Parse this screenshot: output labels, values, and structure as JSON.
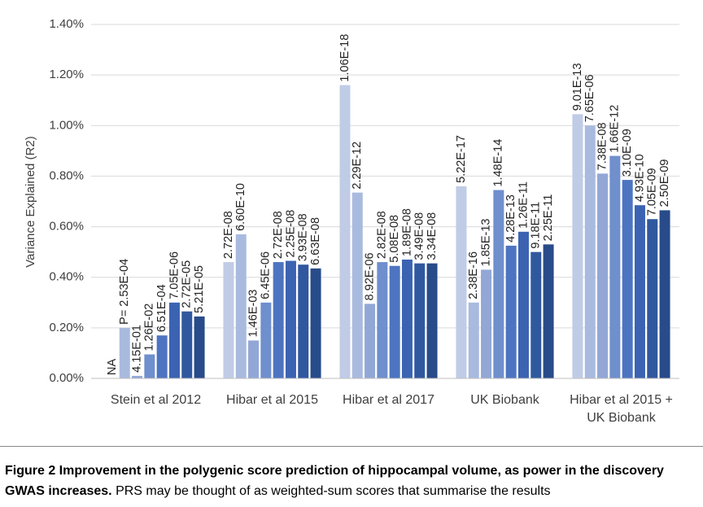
{
  "chart_data": {
    "type": "bar",
    "y_label": "Variance Explained (R2)",
    "categories": [
      "Stein et al 2012",
      "Hibar et al 2015",
      "Hibar et al 2017",
      "UK Biobank",
      "Hibar et al 2015 + UK Biobank"
    ],
    "ylim": [
      0,
      1.4
    ],
    "yticks": [
      {
        "value": 0,
        "label": "0.00%"
      },
      {
        "value": 0.2,
        "label": "0.20%"
      },
      {
        "value": 0.4,
        "label": "0.40%"
      },
      {
        "value": 0.6,
        "label": "0.60%"
      },
      {
        "value": 0.8,
        "label": "0.80%"
      },
      {
        "value": 1.0,
        "label": "1.00%"
      },
      {
        "value": 1.2,
        "label": "1.20%"
      },
      {
        "value": 1.4,
        "label": "1.40%"
      }
    ],
    "grid": true,
    "series": [
      {
        "color": "#c0cce6",
        "values": [
          null,
          0.46,
          1.16,
          0.76,
          1.045
        ],
        "labels": [
          "NA",
          "2.72E-08",
          "1.06E-18",
          "5.22E-17",
          "9.01E-13"
        ]
      },
      {
        "color": "#a9badf",
        "values": [
          0.2,
          0.57,
          0.735,
          0.3,
          1.0
        ],
        "labels": [
          "P= 2.53E-04",
          "6.60E-10",
          "2.29E-12",
          "2.38E-16",
          "7.65E-06"
        ]
      },
      {
        "color": "#92a7d6",
        "values": [
          0.01,
          0.15,
          0.295,
          0.43,
          0.81
        ],
        "labels": [
          "4.15E-01",
          "1.46E-03",
          "8.92E-06",
          "1.85E-13",
          "7.38E-08"
        ]
      },
      {
        "color": "#6f8fcd",
        "values": [
          0.095,
          0.3,
          0.46,
          0.745,
          0.88
        ],
        "labels": [
          "1.26E-02",
          "6.45E-06",
          "2.82E-08",
          "1.48E-14",
          "1.66E-12"
        ]
      },
      {
        "color": "#4d74c0",
        "values": [
          0.17,
          0.46,
          0.445,
          0.525,
          0.785
        ],
        "labels": [
          "6.51E-04",
          "2.72E-08",
          "5.08E-08",
          "4.28E-13",
          "3.10E-09"
        ]
      },
      {
        "color": "#3b63b2",
        "values": [
          0.3,
          0.465,
          0.47,
          0.58,
          0.685
        ],
        "labels": [
          "7.05E-06",
          "2.25E-08",
          "1.89E-08",
          "1.26E-11",
          "4.93E-10"
        ]
      },
      {
        "color": "#30589f",
        "values": [
          0.265,
          0.45,
          0.455,
          0.5,
          0.63
        ],
        "labels": [
          "2.72E-05",
          "3.93E-08",
          "3.49E-08",
          "9.18E-11",
          "7.05E-09"
        ]
      },
      {
        "color": "#284b8a",
        "values": [
          0.245,
          0.435,
          0.455,
          0.53,
          0.665
        ],
        "labels": [
          "5.21E-05",
          "6.63E-08",
          "3.34E-08",
          "2.25E-11",
          "2.50E-09"
        ]
      }
    ]
  },
  "caption": {
    "bold": "Figure 2 Improvement in the polygenic score prediction of hippocampal volume, as power in the discovery GWAS increases.",
    "text": "PRS may be thought of as weighted-sum scores that summarise the results"
  }
}
